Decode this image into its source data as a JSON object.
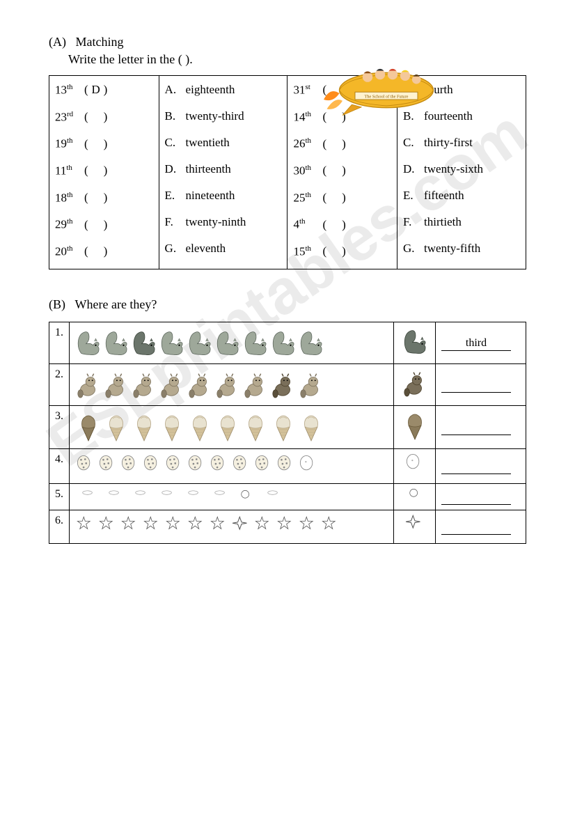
{
  "watermark": "ESLprintables.com",
  "sectionA": {
    "label": "(A)",
    "title": "Matching",
    "subtitle": "Write the letter in the (        ).",
    "rocket_banner": "The School of the Future",
    "left": {
      "ordinals": [
        {
          "num": "13",
          "sup": "th",
          "ans": "D"
        },
        {
          "num": "23",
          "sup": "rd",
          "ans": ""
        },
        {
          "num": "19",
          "sup": "th",
          "ans": ""
        },
        {
          "num": "11",
          "sup": "th",
          "ans": ""
        },
        {
          "num": "18",
          "sup": "th",
          "ans": ""
        },
        {
          "num": "29",
          "sup": "th",
          "ans": ""
        },
        {
          "num": "20",
          "sup": "th",
          "ans": ""
        }
      ],
      "words": [
        {
          "letter": "A.",
          "word": "eighteenth"
        },
        {
          "letter": "B.",
          "word": "twenty-third"
        },
        {
          "letter": "C.",
          "word": "twentieth"
        },
        {
          "letter": "D.",
          "word": "thirteenth"
        },
        {
          "letter": "E.",
          "word": "nineteenth"
        },
        {
          "letter": "F.",
          "word": "twenty-ninth"
        },
        {
          "letter": "G.",
          "word": "eleventh"
        }
      ]
    },
    "right": {
      "ordinals": [
        {
          "num": "31",
          "sup": "st",
          "ans": ""
        },
        {
          "num": "14",
          "sup": "th",
          "ans": ""
        },
        {
          "num": "26",
          "sup": "th",
          "ans": ""
        },
        {
          "num": "30",
          "sup": "th",
          "ans": ""
        },
        {
          "num": "25",
          "sup": "th",
          "ans": ""
        },
        {
          "num": " 4",
          "sup": "th",
          "ans": ""
        },
        {
          "num": "15",
          "sup": "th",
          "ans": ""
        }
      ],
      "words": [
        {
          "letter": "A.",
          "word": "fourth"
        },
        {
          "letter": "B.",
          "word": "fourteenth"
        },
        {
          "letter": "C.",
          "word": "thirty-first"
        },
        {
          "letter": "D.",
          "word": "twenty-sixth"
        },
        {
          "letter": "E.",
          "word": "fifteenth"
        },
        {
          "letter": "F.",
          "word": "thirtieth"
        },
        {
          "letter": "G.",
          "word": "twenty-fifth"
        }
      ]
    }
  },
  "sectionB": {
    "label": "(B)",
    "title": "Where are they?",
    "rows": [
      {
        "n": "1.",
        "type": "squirrel",
        "count": 9,
        "highlight": 3,
        "answer": "third"
      },
      {
        "n": "2.",
        "type": "beaver",
        "count": 9,
        "highlight": 8,
        "answer": ""
      },
      {
        "n": "3.",
        "type": "icecream",
        "count": 9,
        "highlight": 1,
        "answer": ""
      },
      {
        "n": "4.",
        "type": "cookie",
        "count": 11,
        "highlight": 11,
        "answer": ""
      },
      {
        "n": "5.",
        "type": "oval",
        "count": 8,
        "highlight": 7,
        "answer": ""
      },
      {
        "n": "6.",
        "type": "star",
        "count": 12,
        "highlight": 8,
        "answer": ""
      }
    ]
  },
  "colors": {
    "squirrel_body": "#9ea89a",
    "squirrel_dark": "#6b756b",
    "beaver_body": "#b5a98f",
    "beaver_dark": "#7a6f5a",
    "icecream_cone": "#d4c29a",
    "icecream_top": "#e8e2d0",
    "icecream_dark": "#8a7a5a",
    "cookie_fill": "#f5f0e0",
    "cookie_stroke": "#888",
    "oval_stroke": "#999",
    "oval_hl": "#333",
    "star_stroke": "#555",
    "rocket_body": "#f4b728",
    "rocket_flame": "#ff8c1a",
    "rocket_wing": "#e8a020"
  }
}
